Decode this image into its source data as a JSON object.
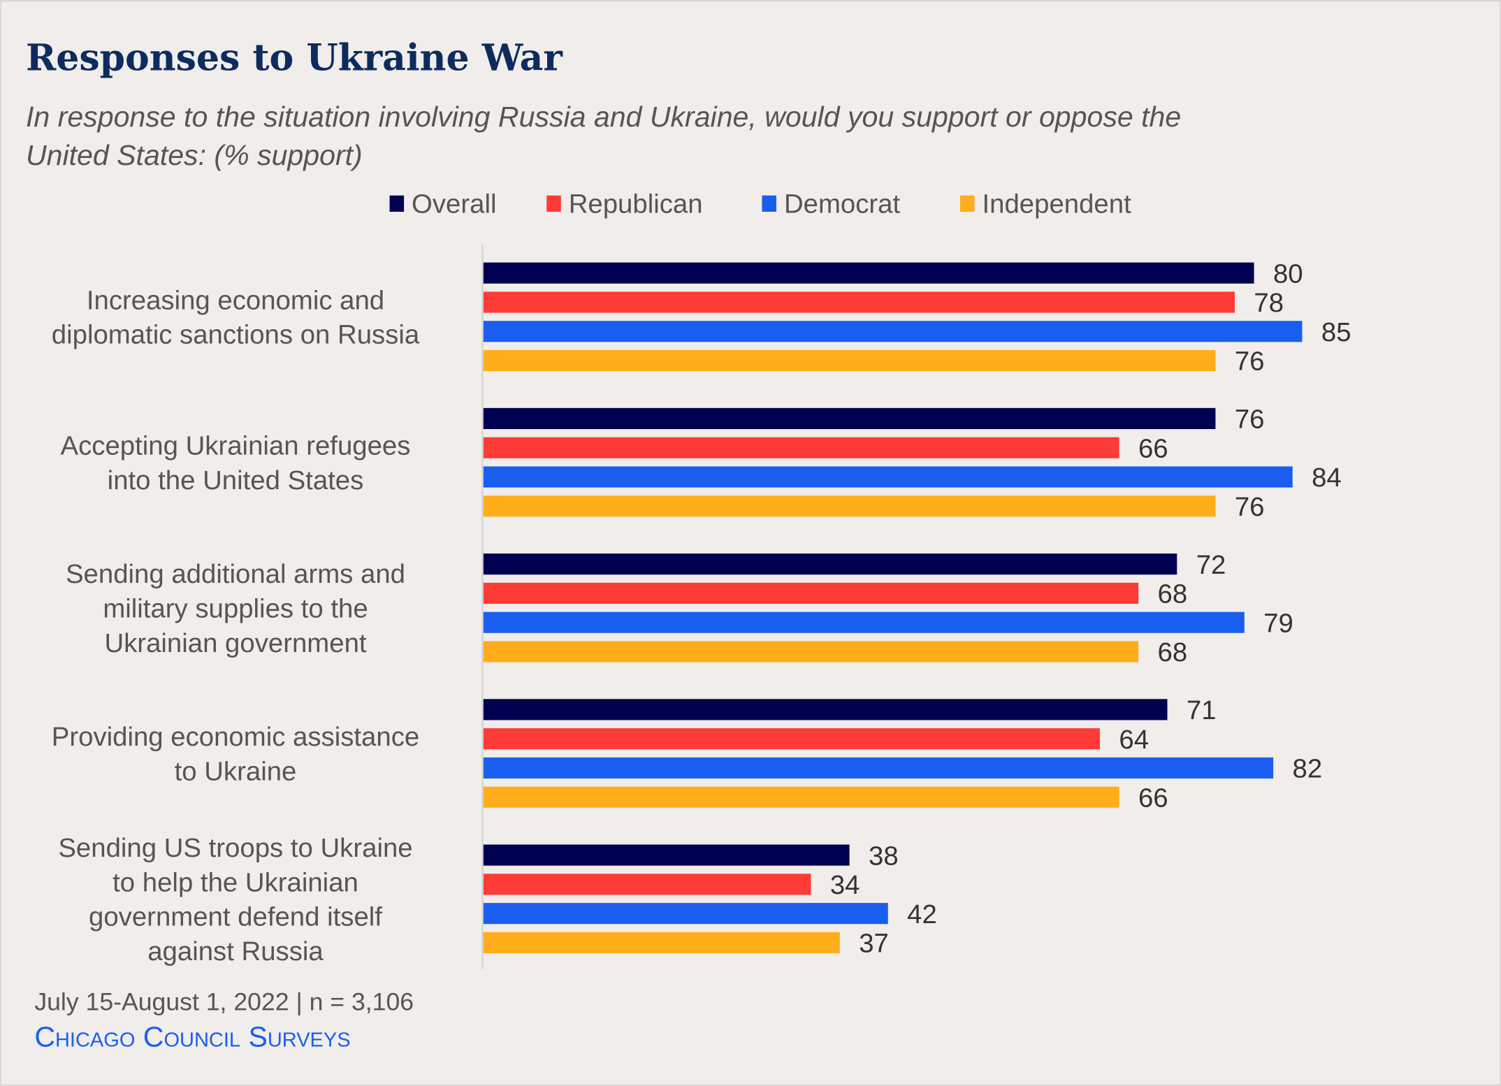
{
  "chart_data": {
    "type": "bar",
    "orientation": "horizontal",
    "title": "Responses to Ukraine War",
    "subtitle": "In response to the situation involving Russia and Ukraine, would you support or oppose the United States: (% support)",
    "subtitle_lines": [
      "In response to the situation involving Russia and Ukraine, would you support or oppose the",
      "United States: (% support)"
    ],
    "categories": [
      "Increasing economic and diplomatic sanctions on Russia",
      "Accepting Ukrainian refugees into the United States",
      "Sending additional arms and military supplies to the Ukrainian government",
      "Providing economic assistance to Ukraine",
      "Sending US troops to Ukraine to help the Ukrainian government defend itself against Russia"
    ],
    "category_lines": [
      [
        "Increasing economic and",
        "diplomatic sanctions on Russia"
      ],
      [
        "Accepting Ukrainian refugees",
        "into the United States"
      ],
      [
        "Sending additional arms and",
        "military supplies to the",
        "Ukrainian government"
      ],
      [
        "Providing economic assistance",
        "to Ukraine"
      ],
      [
        "Sending US troops to Ukraine",
        "to help the Ukrainian",
        "government defend itself",
        "against Russia"
      ]
    ],
    "series": [
      {
        "name": "Overall",
        "color": "#000050",
        "values": [
          80,
          76,
          72,
          71,
          38
        ]
      },
      {
        "name": "Republican",
        "color": "#ff3b37",
        "values": [
          78,
          66,
          68,
          64,
          34
        ]
      },
      {
        "name": "Democrat",
        "color": "#1a5ef0",
        "values": [
          85,
          84,
          79,
          82,
          42
        ]
      },
      {
        "name": "Independent",
        "color": "#ffad1a",
        "values": [
          76,
          76,
          68,
          66,
          37
        ]
      }
    ],
    "xlim": [
      0,
      100
    ],
    "grid": false,
    "data_labels": true,
    "legend_position": "top-center"
  },
  "footer": {
    "source": "July 15-August 1, 2022 | n = 3,106",
    "brand": "Chicago Council Surveys"
  },
  "colors": {
    "background": "#f0edea",
    "title": "#0d2b5e",
    "brand": "#1a5ef0"
  }
}
